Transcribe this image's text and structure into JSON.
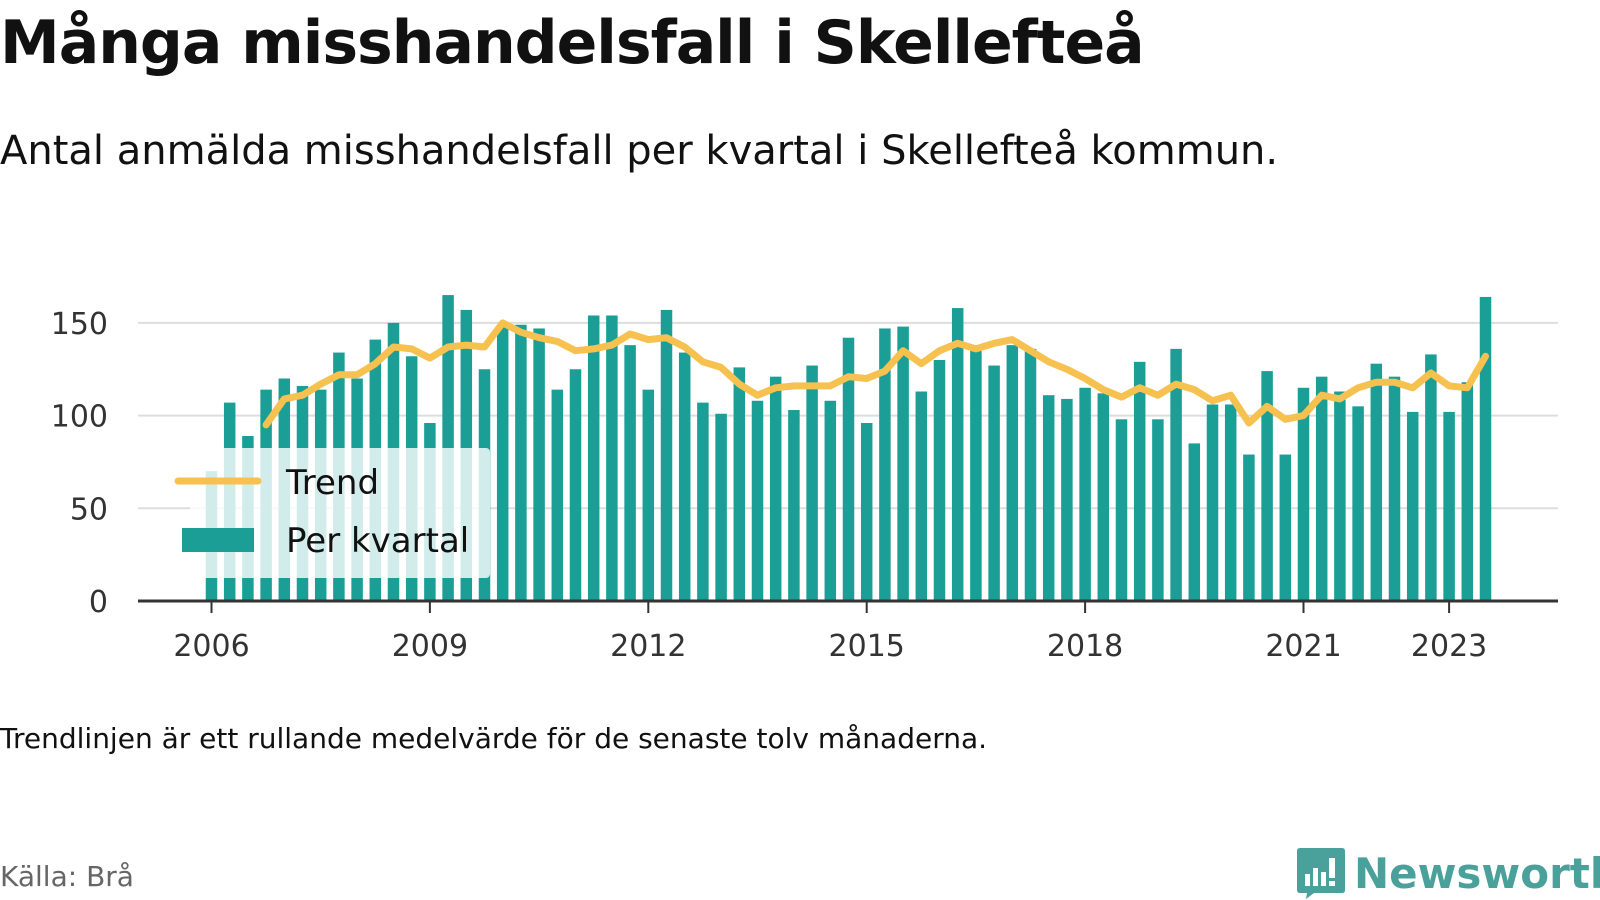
{
  "title": "Många misshandelsfall i Skellefteå",
  "subtitle": "Antal anmälda misshandelsfall per kvartal i Skellefteå kommun.",
  "note": "Trendlinjen är ett rullande medelvärde för de senaste tolv månaderna.",
  "source": "Källa: Brå",
  "brand": "Newsworthy",
  "colors": {
    "bar": "#1a9e96",
    "trend": "#f7c150",
    "grid": "#dddddd",
    "axis": "#333333",
    "brand": "#4aa19b"
  },
  "chart_data": {
    "type": "bar",
    "title": "Många misshandelsfall i Skellefteå",
    "xlabel": "",
    "ylabel": "",
    "x_start": "2006 Q1",
    "ylim": [
      0,
      165
    ],
    "yticks": [
      0,
      50,
      100,
      150
    ],
    "xticks": [
      "2006",
      "2009",
      "2012",
      "2015",
      "2018",
      "2021",
      "2023"
    ],
    "grid": true,
    "legend_position": "bottom-left",
    "series": [
      {
        "name": "Per kvartal",
        "type": "bar",
        "values": [
          70,
          107,
          89,
          114,
          120,
          116,
          114,
          134,
          120,
          141,
          150,
          132,
          96,
          165,
          157,
          125,
          148,
          149,
          147,
          114,
          125,
          154,
          154,
          138,
          114,
          157,
          134,
          107,
          101,
          126,
          108,
          121,
          103,
          127,
          108,
          142,
          96,
          147,
          148,
          113,
          130,
          158,
          135,
          127,
          138,
          136,
          111,
          109,
          115,
          112,
          98,
          129,
          98,
          136,
          85,
          106,
          106,
          79,
          124,
          79,
          115,
          121,
          113,
          105,
          128,
          121,
          102,
          133,
          102,
          118,
          164
        ]
      },
      {
        "name": "Trend",
        "type": "line",
        "values": [
          null,
          null,
          null,
          95,
          109,
          111,
          117,
          122,
          122,
          128,
          137,
          136,
          131,
          137,
          138,
          137,
          150,
          145,
          142,
          140,
          135,
          136,
          138,
          144,
          141,
          142,
          137,
          129,
          126,
          117,
          111,
          115,
          116,
          116,
          116,
          121,
          120,
          124,
          135,
          128,
          135,
          139,
          136,
          139,
          141,
          135,
          129,
          125,
          120,
          114,
          110,
          115,
          111,
          117,
          114,
          108,
          111,
          96,
          105,
          98,
          100,
          111,
          109,
          115,
          118,
          118,
          115,
          123,
          116,
          115,
          132
        ]
      }
    ]
  }
}
